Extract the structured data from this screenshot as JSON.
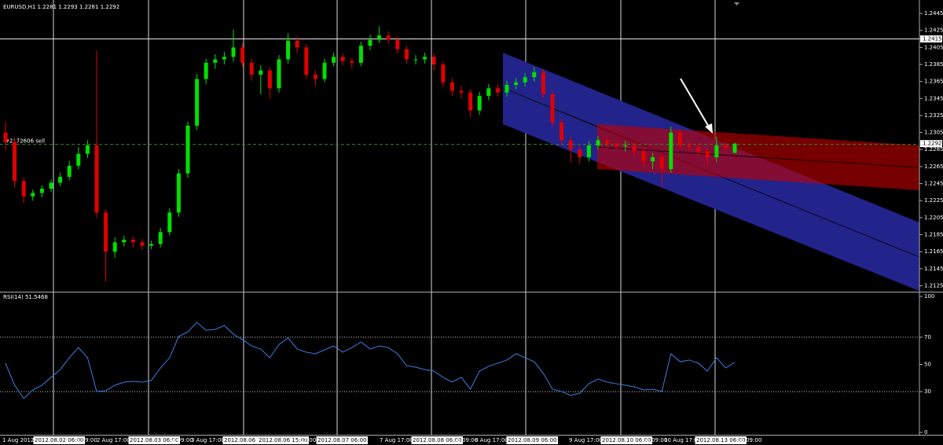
{
  "chart_data": [
    {
      "type": "candlestick",
      "title": "EURUSD,H1  1.2281 1.2293 1.2281 1.2292",
      "open": [
        1.2305,
        1.2294,
        1.2248,
        1.223,
        1.2234,
        1.2239,
        1.2246,
        1.2253,
        1.2266,
        1.228,
        1.229,
        1.2211,
        1.2165,
        1.2176,
        1.2179,
        1.2176,
        1.2172,
        1.2174,
        1.2188,
        1.2211,
        1.2257,
        1.2313,
        1.2368,
        1.2387,
        1.2391,
        1.2394,
        1.2405,
        1.2387,
        1.2373,
        1.2378,
        1.2357,
        1.2391,
        1.2413,
        1.2405,
        1.2373,
        1.2368,
        1.2387,
        1.2394,
        1.2389,
        1.2387,
        1.2407,
        1.2414,
        1.2419,
        1.2414,
        1.2403,
        1.2391,
        1.2391,
        1.2394,
        1.2385,
        1.2364,
        1.2354,
        1.2352,
        1.2331,
        1.2348,
        1.2357,
        1.2352,
        1.2361,
        1.2364,
        1.237,
        1.2376,
        1.235,
        1.2317,
        1.2296,
        1.2285,
        1.2276,
        1.229,
        1.2296,
        1.2292,
        1.2289,
        1.229,
        1.2283,
        1.2271,
        1.2276,
        1.2262,
        1.2305,
        1.229,
        1.2288,
        1.2283,
        1.2276,
        1.229,
        1.2281
      ],
      "high": [
        1.2318,
        1.2298,
        1.2252,
        1.2238,
        1.2243,
        1.225,
        1.2258,
        1.2272,
        1.2288,
        1.2296,
        1.2401,
        1.2215,
        1.2182,
        1.2184,
        1.2183,
        1.218,
        1.2178,
        1.2193,
        1.2216,
        1.2262,
        1.2318,
        1.2374,
        1.2392,
        1.2397,
        1.24,
        1.2426,
        1.241,
        1.2392,
        1.2384,
        1.2382,
        1.2396,
        1.2422,
        1.2418,
        1.2409,
        1.2378,
        1.2392,
        1.2399,
        1.2398,
        1.2393,
        1.2412,
        1.242,
        1.243,
        1.2424,
        1.2418,
        1.2407,
        1.2396,
        1.2399,
        1.2398,
        1.2389,
        1.2369,
        1.236,
        1.2356,
        1.2353,
        1.2362,
        1.2362,
        1.2366,
        1.2369,
        1.2375,
        1.2382,
        1.238,
        1.2354,
        1.2321,
        1.23,
        1.229,
        1.2295,
        1.2301,
        1.23,
        1.2296,
        1.2295,
        1.2294,
        1.2287,
        1.2281,
        1.228,
        1.2312,
        1.2309,
        1.2294,
        1.2292,
        1.2287,
        1.23,
        1.2295,
        1.2293
      ],
      "low": [
        1.2285,
        1.224,
        1.2222,
        1.2225,
        1.2229,
        1.2235,
        1.2242,
        1.2249,
        1.2262,
        1.2275,
        1.2205,
        1.213,
        1.2158,
        1.2171,
        1.217,
        1.2167,
        1.2168,
        1.217,
        1.2184,
        1.2206,
        1.2252,
        1.2308,
        1.2362,
        1.238,
        1.2385,
        1.2388,
        1.2382,
        1.2366,
        1.235,
        1.2345,
        1.2352,
        1.2386,
        1.2398,
        1.2368,
        1.236,
        1.2364,
        1.2383,
        1.2384,
        1.238,
        1.2383,
        1.2402,
        1.241,
        1.2409,
        1.2398,
        1.2386,
        1.2385,
        1.2386,
        1.2378,
        1.2358,
        1.2348,
        1.2345,
        1.2323,
        1.2326,
        1.2343,
        1.2347,
        1.2347,
        1.2356,
        1.2359,
        1.2365,
        1.2345,
        1.2311,
        1.229,
        1.227,
        1.2268,
        1.2271,
        1.2285,
        1.2287,
        1.2284,
        1.2283,
        1.2278,
        1.2265,
        1.2262,
        1.2242,
        1.2258,
        1.2285,
        1.2283,
        1.2277,
        1.2266,
        1.2271,
        1.2282,
        1.2281
      ],
      "close": [
        1.2294,
        1.2248,
        1.223,
        1.2234,
        1.2239,
        1.2246,
        1.2253,
        1.2266,
        1.228,
        1.229,
        1.2211,
        1.2165,
        1.2176,
        1.2179,
        1.2176,
        1.2172,
        1.2174,
        1.2188,
        1.2211,
        1.2257,
        1.2313,
        1.2368,
        1.2387,
        1.2391,
        1.2394,
        1.2405,
        1.2387,
        1.2373,
        1.2378,
        1.2357,
        1.2391,
        1.2413,
        1.2405,
        1.2373,
        1.2368,
        1.2387,
        1.2394,
        1.2389,
        1.2387,
        1.2407,
        1.2414,
        1.2419,
        1.2414,
        1.2403,
        1.2391,
        1.2391,
        1.2394,
        1.2385,
        1.2364,
        1.2354,
        1.2352,
        1.2331,
        1.2348,
        1.2357,
        1.2352,
        1.2361,
        1.2364,
        1.237,
        1.2376,
        1.235,
        1.2317,
        1.2296,
        1.2285,
        1.2276,
        1.229,
        1.2296,
        1.2292,
        1.2289,
        1.229,
        1.2283,
        1.2271,
        1.2276,
        1.2262,
        1.2305,
        1.229,
        1.2288,
        1.2283,
        1.2276,
        1.229,
        1.2287,
        1.2292
      ],
      "up_color": "#00e000",
      "down_color": "#e00000",
      "ylim": [
        1.2118,
        1.2458
      ],
      "yticks": [
        1.2445,
        1.2425,
        1.2405,
        1.2385,
        1.2365,
        1.2345,
        1.2325,
        1.2305,
        1.2285,
        1.2265,
        1.2245,
        1.2225,
        1.2205,
        1.2185,
        1.2165,
        1.2145,
        1.2125
      ],
      "hline": 1.2415,
      "last_price": 1.2292,
      "order_label": "#2172606 sell"
    },
    {
      "type": "line",
      "title": "RSI(14) 51.5468",
      "values": [
        50.9,
        34.7,
        24.9,
        31.2,
        34.7,
        40.5,
        46.2,
        54.9,
        62.4,
        54.9,
        30.1,
        30.6,
        34.7,
        37.0,
        37.6,
        37.0,
        38.2,
        47.4,
        54.9,
        70.5,
        74.0,
        80.9,
        75.1,
        75.7,
        78.6,
        72.3,
        68.2,
        63.6,
        61.3,
        54.9,
        64.7,
        69.4,
        61.3,
        59.0,
        57.8,
        60.7,
        63.6,
        59.0,
        62.4,
        66.5,
        61.3,
        63.6,
        62.4,
        57.8,
        49.1,
        48.0,
        46.2,
        45.1,
        40.5,
        37.0,
        40.5,
        31.8,
        45.1,
        48.6,
        50.9,
        53.2,
        57.8,
        54.9,
        52.0,
        43.4,
        31.8,
        30.1,
        27.2,
        28.9,
        35.8,
        39.3,
        37.0,
        35.8,
        34.7,
        33.5,
        31.2,
        31.8,
        30.1,
        57.8,
        52.0,
        53.2,
        50.9,
        45.1,
        54.9,
        47.4,
        51.5
      ],
      "color": "#3b7fe0",
      "ylim": [
        0,
        100
      ],
      "yticks": [
        100,
        70,
        50,
        30,
        0
      ],
      "levels": [
        70,
        30
      ],
      "x_labels": [
        "1 Aug 2012",
        "2012.08.02 06:00",
        "g 09:00",
        "2 Aug 17:00",
        "2012.08.03 06:00",
        "g 09:00",
        "3 Aug 17:00",
        "2012.08.06 06:0",
        "2012.08.06 15:00",
        "17:00",
        "2012.08.07 06:00",
        "7 Aug 17:00",
        "2012.08.08 06:00",
        "ug 09:00",
        "8 Aug 17:00",
        "2012.08.09 06:00",
        "9 Aug 17:00",
        "2012.08.10 06:00",
        "ug 09:00",
        "10 Aug 17:00",
        "2012.08.13 06:00",
        "ug 09:00"
      ]
    }
  ]
}
